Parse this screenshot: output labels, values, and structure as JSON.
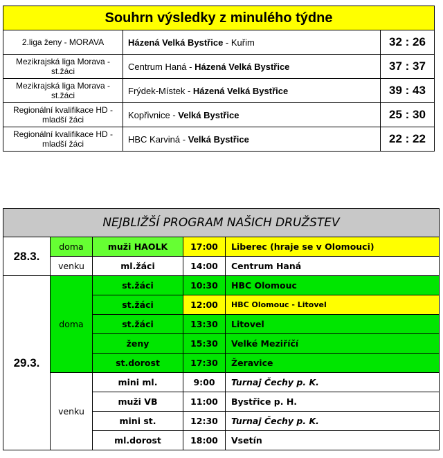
{
  "results": {
    "title": "Souhrn výsledky z minulého týdne",
    "rows": [
      {
        "league": "2.liga ženy - MORAVA",
        "home": "Házená Velká Bystřice",
        "sep": " - ",
        "away": "Kuřim",
        "bold": "home",
        "score": "32 : 26"
      },
      {
        "league": "Mezikrajská liga Morava - st.žáci",
        "home": "Centrum Haná",
        "sep": " - ",
        "away": "Házená Velká Bystřice",
        "bold": "away",
        "score": "37 : 37"
      },
      {
        "league": "Mezikrajská liga Morava - st.žáci",
        "home": "Frýdek-Místek",
        "sep": " - ",
        "away": "Házená Velká Bystřice",
        "bold": "away",
        "score": "39 : 43"
      },
      {
        "league": "Regionální kvalifikace HD - mladší žáci",
        "home": "Kopřivnice",
        "sep": " - ",
        "away": "Velká Bystřice",
        "bold": "away",
        "score": "25 : 30"
      },
      {
        "league": "Regionální kvalifikace HD - mladší žáci",
        "home": "HBC Karviná",
        "sep": " - ",
        "away": "Velká Bystřice",
        "bold": "away",
        "score": "22 : 22"
      }
    ]
  },
  "program": {
    "title": "NEJBLIŽŠÍ PROGRAM NAŠICH DRUŽSTEV",
    "colors": {
      "light_green": "#66ff33",
      "green": "#00e600",
      "yellow": "#ffff00",
      "header_gray": "#c8c8c8"
    },
    "days": [
      {
        "date": "28.3.",
        "groups": [
          {
            "where": "doma",
            "games": [
              {
                "team": "muži HAOLK",
                "time": "17:00",
                "opponent": "Liberec (hraje se v Olomouci)"
              }
            ]
          },
          {
            "where": "venku",
            "games": [
              {
                "team": "ml.žáci",
                "time": "14:00",
                "opponent": "Centrum Haná"
              }
            ]
          }
        ]
      },
      {
        "date": "29.3.",
        "groups": [
          {
            "where": "doma",
            "games": [
              {
                "team": "st.žáci",
                "time": "10:30",
                "opponent": "HBC Olomouc"
              },
              {
                "team": "st.žáci",
                "time": "12:00",
                "opponent": "HBC Olomouc - Litovel"
              },
              {
                "team": "st.žáci",
                "time": "13:30",
                "opponent": "Litovel"
              },
              {
                "team": "ženy",
                "time": "15:30",
                "opponent": "Velké Meziříčí"
              },
              {
                "team": "st.dorost",
                "time": "17:30",
                "opponent": "Žeravice"
              }
            ]
          },
          {
            "where": "venku",
            "games": [
              {
                "team": "mini ml.",
                "time": "9:00",
                "opponent": "Turnaj Čechy p. K."
              },
              {
                "team": "muži VB",
                "time": "11:00",
                "opponent": "Bystřice p. H."
              },
              {
                "team": "mini st.",
                "time": "12:30",
                "opponent": "Turnaj Čechy p. K."
              },
              {
                "team": "ml.dorost",
                "time": "18:00",
                "opponent": "Vsetín"
              }
            ]
          }
        ]
      }
    ]
  }
}
